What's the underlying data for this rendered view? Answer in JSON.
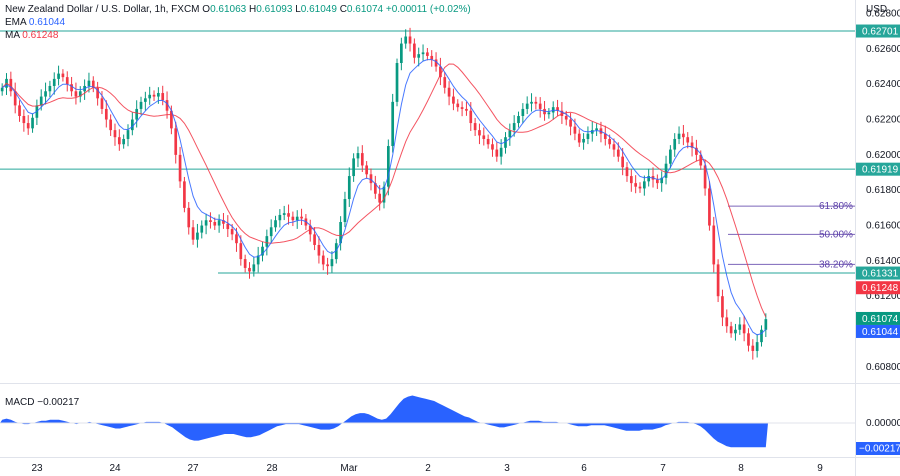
{
  "header": {
    "symbol": "New Zealand Dollar / U.S. Dollar, 1h, FXCM",
    "open_label": "O",
    "open": "0.61063",
    "high_label": "H",
    "high": "0.61093",
    "low_label": "L",
    "low": "0.61049",
    "close_label": "C",
    "close": "0.61074",
    "change": "+0.00011 (+0.02%)",
    "ema_label": "EMA",
    "ema_value": "0.61044",
    "ma_label": "MA",
    "ma_value": "0.61248"
  },
  "currency": "USD",
  "macd": {
    "label": "MACD",
    "value": "−0.00217",
    "axis_ticks": [
      "0.00000"
    ],
    "current_tag": "−0.00217"
  },
  "price_axis": {
    "ticks": [
      "0.62800",
      "0.62600",
      "0.62400",
      "0.62200",
      "0.62000",
      "0.61800",
      "0.61600",
      "0.61400",
      "0.61200",
      "0.60800"
    ]
  },
  "time_axis": {
    "labels": [
      "23",
      "24",
      "27",
      "28",
      "Mar",
      "2",
      "3",
      "6",
      "7",
      "8",
      "9"
    ]
  },
  "tags": {
    "level_1": "0.62701",
    "level_2": "0.61919",
    "level_3": "0.61331",
    "ma": "0.61248",
    "close": "0.61074",
    "ema": "0.61044"
  },
  "fib_labels": [
    "61.80%",
    "50.00%",
    "38.20%"
  ],
  "colors": {
    "bull": "#089981",
    "bear": "#f23645",
    "ema": "#2962ff",
    "ma": "#f23645",
    "level_line": "#26a69a",
    "fib": "#5b3fa8",
    "macd_fill": "#2962ff"
  },
  "chart_data": {
    "type": "candlestick",
    "title": "New Zealand Dollar / U.S. Dollar, 1h, FXCM",
    "x_labels": [
      "23",
      "24",
      "27",
      "28",
      "Mar",
      "2",
      "3",
      "6",
      "7",
      "8",
      "9"
    ],
    "ylim": [
      0.6072,
      0.6282
    ],
    "horizontal_levels": [
      0.62701,
      0.61919,
      0.61331
    ],
    "fib_levels": [
      {
        "label": "61.80%",
        "price": 0.6171
      },
      {
        "label": "50.00%",
        "price": 0.6155
      },
      {
        "label": "38.20%",
        "price": 0.6138
      }
    ],
    "close_path": [
      0.6238,
      0.6243,
      0.6236,
      0.6228,
      0.6222,
      0.6218,
      0.6215,
      0.6221,
      0.6228,
      0.6233,
      0.6236,
      0.6239,
      0.6243,
      0.6246,
      0.6244,
      0.624,
      0.6236,
      0.6233,
      0.6236,
      0.6239,
      0.6242,
      0.6238,
      0.6232,
      0.6226,
      0.622,
      0.6214,
      0.621,
      0.6206,
      0.6209,
      0.6214,
      0.622,
      0.6226,
      0.623,
      0.6232,
      0.6234,
      0.6233,
      0.6235,
      0.6231,
      0.6225,
      0.6215,
      0.62,
      0.6185,
      0.617,
      0.6159,
      0.6152,
      0.6156,
      0.616,
      0.6163,
      0.6162,
      0.616,
      0.6163,
      0.6161,
      0.6158,
      0.6155,
      0.615,
      0.6141,
      0.6136,
      0.6134,
      0.6138,
      0.6143,
      0.6148,
      0.6154,
      0.6159,
      0.6163,
      0.6166,
      0.6167,
      0.6165,
      0.6163,
      0.6165,
      0.6164,
      0.616,
      0.6155,
      0.6149,
      0.6143,
      0.6138,
      0.6137,
      0.6141,
      0.615,
      0.6162,
      0.6175,
      0.6188,
      0.6198,
      0.6201,
      0.6194,
      0.6189,
      0.6184,
      0.6178,
      0.6173,
      0.6182,
      0.6205,
      0.623,
      0.6252,
      0.6263,
      0.6267,
      0.6263,
      0.6255,
      0.6257,
      0.6258,
      0.6256,
      0.6254,
      0.625,
      0.6244,
      0.6238,
      0.6233,
      0.6229,
      0.6227,
      0.6226,
      0.6225,
      0.6218,
      0.6214,
      0.6211,
      0.6209,
      0.6206,
      0.6203,
      0.6199,
      0.6204,
      0.621,
      0.6214,
      0.6218,
      0.6222,
      0.6226,
      0.6229,
      0.623,
      0.6229,
      0.6226,
      0.6223,
      0.6224,
      0.6227,
      0.6225,
      0.6222,
      0.622,
      0.6216,
      0.6212,
      0.6207,
      0.6209,
      0.6212,
      0.6214,
      0.6215,
      0.6212,
      0.6209,
      0.6206,
      0.6203,
      0.6199,
      0.6193,
      0.6188,
      0.6184,
      0.6182,
      0.6181,
      0.6185,
      0.6188,
      0.6186,
      0.6184,
      0.6187,
      0.6195,
      0.6203,
      0.6209,
      0.6212,
      0.621,
      0.6207,
      0.6204,
      0.62,
      0.6194,
      0.6181,
      0.616,
      0.6138,
      0.612,
      0.6108,
      0.6103,
      0.6099,
      0.6101,
      0.6104,
      0.6099,
      0.6092,
      0.6089,
      0.6094,
      0.6101,
      0.6107
    ],
    "series": [
      {
        "name": "EMA",
        "last_value": 0.61044
      },
      {
        "name": "MA",
        "last_value": 0.61248
      },
      {
        "name": "MACD",
        "last_value": -0.00217
      }
    ],
    "macd_path": [
      0.0003,
      0.0004,
      0.0003,
      0.0001,
      0.0,
      -0.0001,
      -0.0001,
      0.0,
      0.0001,
      0.0002,
      0.0002,
      0.0003,
      0.0003,
      0.0003,
      0.0002,
      0.0001,
      0.0,
      -0.0001,
      0.0,
      0.0,
      0.0001,
      0.0,
      -0.0001,
      -0.0002,
      -0.0003,
      -0.0004,
      -0.0005,
      -0.0005,
      -0.0004,
      -0.0003,
      -0.0002,
      -0.0001,
      0.0,
      0.0001,
      0.0001,
      0.0001,
      0.0001,
      0.0,
      -0.0002,
      -0.0004,
      -0.0007,
      -0.001,
      -0.0013,
      -0.0015,
      -0.0016,
      -0.0016,
      -0.0015,
      -0.0014,
      -0.0013,
      -0.0012,
      -0.0011,
      -0.001,
      -0.001,
      -0.001,
      -0.0011,
      -0.0012,
      -0.0013,
      -0.0013,
      -0.0012,
      -0.0011,
      -0.0009,
      -0.0007,
      -0.0005,
      -0.0003,
      -0.0002,
      -0.0001,
      -0.0001,
      -0.0001,
      -0.0001,
      -0.0002,
      -0.0003,
      -0.0004,
      -0.0005,
      -0.0006,
      -0.0006,
      -0.0006,
      -0.0005,
      -0.0003,
      0.0,
      0.0003,
      0.0006,
      0.0008,
      0.0009,
      0.0009,
      0.0008,
      0.0006,
      0.0004,
      0.0003,
      0.0004,
      0.0008,
      0.0013,
      0.0018,
      0.0022,
      0.0024,
      0.0025,
      0.0024,
      0.0023,
      0.0022,
      0.0021,
      0.002,
      0.0018,
      0.0016,
      0.0014,
      0.0012,
      0.001,
      0.0008,
      0.0006,
      0.0005,
      0.0003,
      0.0001,
      0.0,
      -0.0001,
      -0.0002,
      -0.0003,
      -0.0004,
      -0.0004,
      -0.0003,
      -0.0002,
      -0.0001,
      0.0,
      0.0001,
      0.0002,
      0.0002,
      0.0002,
      0.0001,
      0.0001,
      0.0001,
      0.0001,
      0.0,
      0.0,
      -0.0001,
      -0.0002,
      -0.0003,
      -0.0003,
      -0.0003,
      -0.0002,
      -0.0002,
      -0.0002,
      -0.0002,
      -0.0003,
      -0.0004,
      -0.0005,
      -0.0006,
      -0.0007,
      -0.0007,
      -0.0007,
      -0.0007,
      -0.0006,
      -0.0006,
      -0.0006,
      -0.0005,
      -0.0004,
      -0.0002,
      -0.0001,
      0.0,
      0.0001,
      0.0001,
      0.0001,
      0.0,
      -0.0001,
      -0.0003,
      -0.0006,
      -0.001,
      -0.0014,
      -0.0017,
      -0.0019,
      -0.0021,
      -0.0022,
      -0.0022,
      -0.0022,
      -0.0022,
      -0.0022,
      -0.0022,
      -0.0022,
      -0.0022,
      -0.0022
    ]
  }
}
